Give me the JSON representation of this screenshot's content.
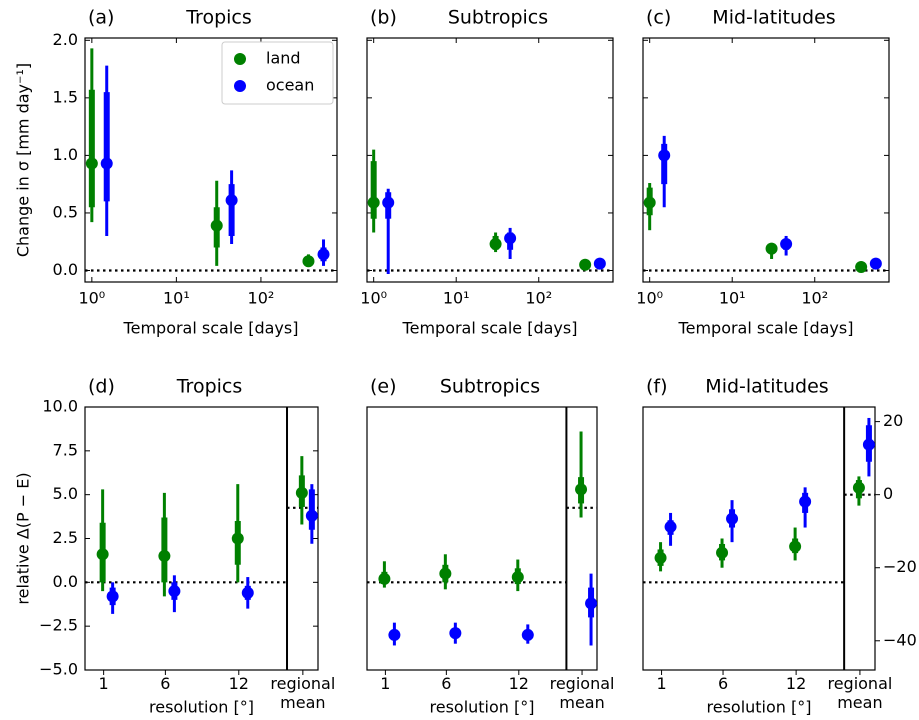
{
  "chart_data": [
    {
      "type": "errorbar",
      "panel_label": "(a)",
      "title": "Tropics",
      "xlabel": "Temporal scale [days]",
      "ylabel": "Change in σ [mm day⁻¹]",
      "xscale": "log",
      "xlim": [
        0.83,
        794
      ],
      "ylim": [
        -0.1,
        2.02
      ],
      "xticks": [
        {
          "value": 1,
          "label": "10⁰"
        },
        {
          "value": 10,
          "label": "10¹"
        },
        {
          "value": 100,
          "label": "10²"
        }
      ],
      "yticks": [
        {
          "value": 0,
          "label": "0.0"
        },
        {
          "value": 0.5,
          "label": "0.5"
        },
        {
          "value": 1,
          "label": "1.0"
        },
        {
          "value": 1.5,
          "label": "1.5"
        },
        {
          "value": 2,
          "label": "2.0"
        }
      ],
      "legend": "upper right",
      "ref_lines": [
        {
          "value": 0,
          "span": "all"
        }
      ],
      "series": [
        {
          "name": "land",
          "color": "#008000",
          "x": [
            1,
            30,
            365
          ],
          "values": [
            0.93,
            0.39,
            0.08
          ],
          "box_low": [
            0.55,
            0.2,
            0.05
          ],
          "box_high": [
            1.57,
            0.55,
            0.12
          ],
          "whisker_low": [
            0.42,
            0.04,
            0.03
          ],
          "whisker_high": [
            1.93,
            0.78,
            0.14
          ]
        },
        {
          "name": "ocean",
          "color": "#0000ff",
          "x": [
            1.5,
            45,
            550
          ],
          "values": [
            0.93,
            0.61,
            0.14
          ],
          "box_low": [
            0.6,
            0.3,
            0.08
          ],
          "box_high": [
            1.55,
            0.75,
            0.2
          ],
          "whisker_low": [
            0.3,
            0.23,
            0.04
          ],
          "whisker_high": [
            1.78,
            0.87,
            0.27
          ]
        }
      ]
    },
    {
      "type": "errorbar",
      "panel_label": "(b)",
      "title": "Subtropics",
      "xlabel": "Temporal scale [days]",
      "xscale": "log",
      "xlim": [
        0.83,
        794
      ],
      "ylim": [
        -0.1,
        2.02
      ],
      "xticks": [
        {
          "value": 1,
          "label": "10⁰"
        },
        {
          "value": 10,
          "label": "10¹"
        },
        {
          "value": 100,
          "label": "10²"
        }
      ],
      "yticks": [
        0,
        0.5,
        1,
        1.5,
        2
      ],
      "ref_lines": [
        {
          "value": 0,
          "span": "all"
        }
      ],
      "series": [
        {
          "color": "#008000",
          "x": [
            1,
            30,
            365
          ],
          "values": [
            0.59,
            0.23,
            0.05
          ],
          "box_low": [
            0.45,
            0.18,
            0.03
          ],
          "box_high": [
            0.95,
            0.3,
            0.06
          ],
          "whisker_low": [
            0.33,
            0.16,
            0.02
          ],
          "whisker_high": [
            1.05,
            0.33,
            0.07
          ]
        },
        {
          "color": "#0000ff",
          "x": [
            1.5,
            45,
            550
          ],
          "values": [
            0.59,
            0.28,
            0.06
          ],
          "box_low": [
            0.45,
            0.18,
            0.04
          ],
          "box_high": [
            0.68,
            0.33,
            0.08
          ],
          "whisker_low": [
            -0.03,
            0.1,
            0.02
          ],
          "whisker_high": [
            0.71,
            0.37,
            0.1
          ]
        }
      ]
    },
    {
      "type": "errorbar",
      "panel_label": "(c)",
      "title": "Mid-latitudes",
      "xlabel": "Temporal scale [days]",
      "xscale": "log",
      "xlim": [
        0.83,
        794
      ],
      "ylim": [
        -0.1,
        2.02
      ],
      "xticks": [
        {
          "value": 1,
          "label": "10⁰"
        },
        {
          "value": 10,
          "label": "10¹"
        },
        {
          "value": 100,
          "label": "10²"
        }
      ],
      "yticks": [
        0,
        0.5,
        1,
        1.5,
        2
      ],
      "ref_lines": [
        {
          "value": 0,
          "span": "all"
        }
      ],
      "series": [
        {
          "color": "#008000",
          "x": [
            1,
            30,
            365
          ],
          "values": [
            0.59,
            0.19,
            0.03
          ],
          "box_low": [
            0.48,
            0.16,
            0.02
          ],
          "box_high": [
            0.72,
            0.22,
            0.04
          ],
          "whisker_low": [
            0.35,
            0.1,
            0.01
          ],
          "whisker_high": [
            0.76,
            0.23,
            0.05
          ]
        },
        {
          "color": "#0000ff",
          "x": [
            1.5,
            45,
            550
          ],
          "values": [
            1.0,
            0.23,
            0.06
          ],
          "box_low": [
            0.75,
            0.18,
            0.04
          ],
          "box_high": [
            1.1,
            0.27,
            0.07
          ],
          "whisker_low": [
            0.55,
            0.13,
            0.03
          ],
          "whisker_high": [
            1.17,
            0.3,
            0.08
          ]
        }
      ]
    },
    {
      "type": "errorbar",
      "panel_label": "(d)",
      "title": "Tropics",
      "xlabel": "resolution [°]",
      "ylabel": "relative Δ(P − E)",
      "categories": [
        "1",
        "6",
        "12",
        "regional mean"
      ],
      "ylim": [
        -5,
        10
      ],
      "yticks": [
        {
          "value": -5,
          "label": "−5.0"
        },
        {
          "value": -2.5,
          "label": "−2.5"
        },
        {
          "value": 0,
          "label": "0.0"
        },
        {
          "value": 2.5,
          "label": "2.5"
        },
        {
          "value": 5,
          "label": "5.0"
        },
        {
          "value": 7.5,
          "label": "7.5"
        },
        {
          "value": 10,
          "label": "10.0"
        }
      ],
      "ref_lines": [
        {
          "value": 0,
          "span": "resolutions"
        },
        {
          "value": 4.25,
          "span": "regional"
        }
      ],
      "series": [
        {
          "color": "#008000",
          "values": [
            1.6,
            1.5,
            2.5,
            5.1
          ],
          "box_low": [
            0,
            0,
            1,
            4.3
          ],
          "box_high": [
            3.4,
            3.7,
            3.5,
            6.1
          ],
          "whisker_low": [
            -0.5,
            -0.8,
            0,
            3.3
          ],
          "whisker_high": [
            5.3,
            5.1,
            5.6,
            7.2
          ]
        },
        {
          "color": "#0000ff",
          "values": [
            -0.8,
            -0.5,
            -0.6,
            3.8
          ],
          "box_low": [
            -1.3,
            -1,
            -1,
            3
          ],
          "box_high": [
            -0.3,
            0,
            -0.2,
            5.3
          ],
          "whisker_low": [
            -1.8,
            -1.7,
            -1.5,
            2.2
          ],
          "whisker_high": [
            0,
            0.4,
            0.3,
            5.6
          ]
        }
      ]
    },
    {
      "type": "errorbar",
      "panel_label": "(e)",
      "title": "Subtropics",
      "xlabel": "resolution [°]",
      "categories": [
        "1",
        "6",
        "12",
        "regional mean"
      ],
      "ylim": [
        -5,
        10
      ],
      "ref_lines": [
        {
          "value": 0,
          "span": "resolutions"
        },
        {
          "value": 4.25,
          "span": "regional"
        }
      ],
      "series": [
        {
          "color": "#008000",
          "values": [
            0.2,
            0.5,
            0.3,
            5.3
          ],
          "box_low": [
            0,
            0,
            -0.1,
            4.5
          ],
          "box_high": [
            0.6,
            1,
            0.8,
            6
          ],
          "whisker_low": [
            -0.3,
            -0.4,
            -0.5,
            3.7
          ],
          "whisker_high": [
            1.2,
            1.6,
            1.3,
            8.6
          ]
        },
        {
          "color": "#0000ff",
          "values": [
            -3,
            -2.9,
            -3,
            -1.2
          ],
          "box_low": [
            -3.3,
            -3.2,
            -3.3,
            -2
          ],
          "box_high": [
            -2.7,
            -2.6,
            -2.7,
            -0.3
          ],
          "whisker_low": [
            -3.6,
            -3.5,
            -3.5,
            -3.6
          ],
          "whisker_high": [
            -2.3,
            -2.3,
            -2.4,
            0.5
          ]
        }
      ]
    },
    {
      "type": "errorbar",
      "panel_label": "(f)",
      "title": "Mid-latitudes",
      "xlabel": "resolution [°]",
      "categories": [
        "1",
        "6",
        "12",
        "regional mean"
      ],
      "ylim": [
        -5,
        10
      ],
      "y2lim": [
        -48,
        24
      ],
      "y2ticks": [
        {
          "value": -40,
          "label": "−40"
        },
        {
          "value": -20,
          "label": "−20"
        },
        0,
        20
      ],
      "ref_lines": [
        {
          "value": 0,
          "span": "resolutions"
        },
        {
          "value": 0,
          "axis": "y2",
          "span": "regional"
        }
      ],
      "series": [
        {
          "color": "#008000",
          "axis": "y2",
          "values": [
            -17.3,
            -15.9,
            -14.2,
            1.9
          ],
          "box_low": [
            -19.5,
            -18,
            -16,
            -1
          ],
          "box_high": [
            -15,
            -13.5,
            -12,
            4
          ],
          "whisker_low": [
            -21,
            -20,
            -18,
            -3
          ],
          "whisker_high": [
            -13,
            -12,
            -9,
            5
          ]
        },
        {
          "color": "#0000ff",
          "axis": "y2",
          "values": [
            -8.8,
            -6.6,
            -1.9,
            13.7
          ],
          "box_low": [
            -11,
            -9,
            -5,
            9
          ],
          "box_high": [
            -7,
            -4,
            0.5,
            19
          ],
          "whisker_low": [
            -14,
            -13,
            -9,
            5
          ],
          "whisker_high": [
            -5,
            -1.5,
            2,
            21
          ]
        }
      ]
    }
  ]
}
